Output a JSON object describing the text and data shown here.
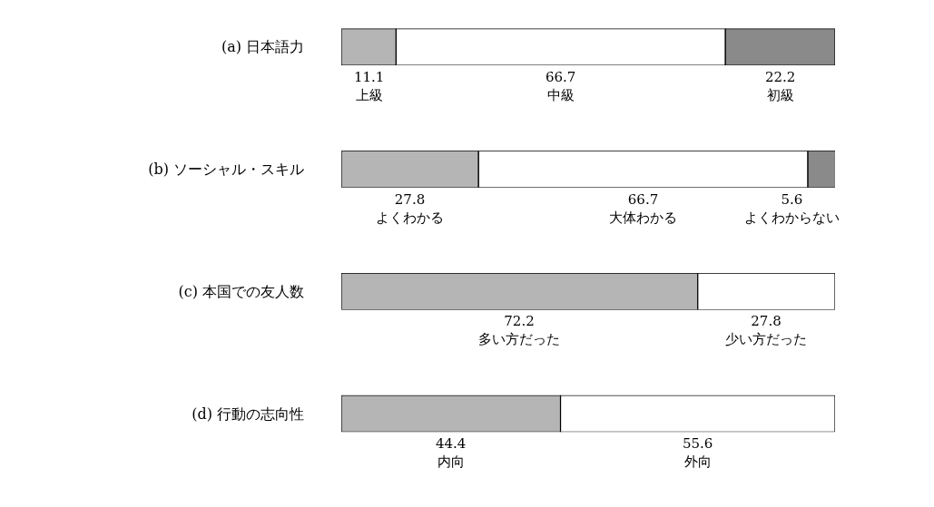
{
  "chart_data": [
    {
      "type": "bar",
      "orientation": "horizontal",
      "stacked": true,
      "categories": [
        "(a) 日本語力"
      ],
      "xlim": [
        0,
        100
      ],
      "tick_labels": "y",
      "legend": false,
      "data_labels": true,
      "series": [
        {
          "name": "上級",
          "color": "#b5b5b5",
          "values": [
            11.1
          ]
        },
        {
          "name": "中級",
          "color": "#ffffff",
          "values": [
            66.7
          ]
        },
        {
          "name": "初級",
          "color": "#8a8a8a",
          "values": [
            22.2
          ]
        }
      ]
    },
    {
      "type": "bar",
      "orientation": "horizontal",
      "stacked": true,
      "categories": [
        "(b) ソーシャル・スキル"
      ],
      "xlim": [
        0,
        100
      ],
      "tick_labels": "y",
      "legend": false,
      "data_labels": true,
      "series": [
        {
          "name": "よくわかる",
          "color": "#b5b5b5",
          "values": [
            27.8
          ]
        },
        {
          "name": "大体わかる",
          "color": "#ffffff",
          "values": [
            66.7
          ]
        },
        {
          "name": "よくわからない",
          "color": "#8a8a8a",
          "values": [
            5.6
          ]
        }
      ]
    },
    {
      "type": "bar",
      "orientation": "horizontal",
      "stacked": true,
      "categories": [
        "(c) 本国での友人数"
      ],
      "xlim": [
        0,
        100
      ],
      "tick_labels": "y",
      "legend": false,
      "data_labels": true,
      "series": [
        {
          "name": "多い方だった",
          "color": "#b5b5b5",
          "values": [
            72.2
          ]
        },
        {
          "name": "少い方だった",
          "color": "#ffffff",
          "values": [
            27.8
          ]
        }
      ]
    },
    {
      "type": "bar",
      "orientation": "horizontal",
      "stacked": true,
      "categories": [
        "(d) 行動の志向性"
      ],
      "xlim": [
        0,
        100
      ],
      "tick_labels": "y",
      "legend": false,
      "data_labels": true,
      "series": [
        {
          "name": "内向",
          "color": "#b5b5b5",
          "values": [
            44.4
          ]
        },
        {
          "name": "外向",
          "color": "#ffffff",
          "values": [
            55.6
          ]
        }
      ]
    }
  ]
}
